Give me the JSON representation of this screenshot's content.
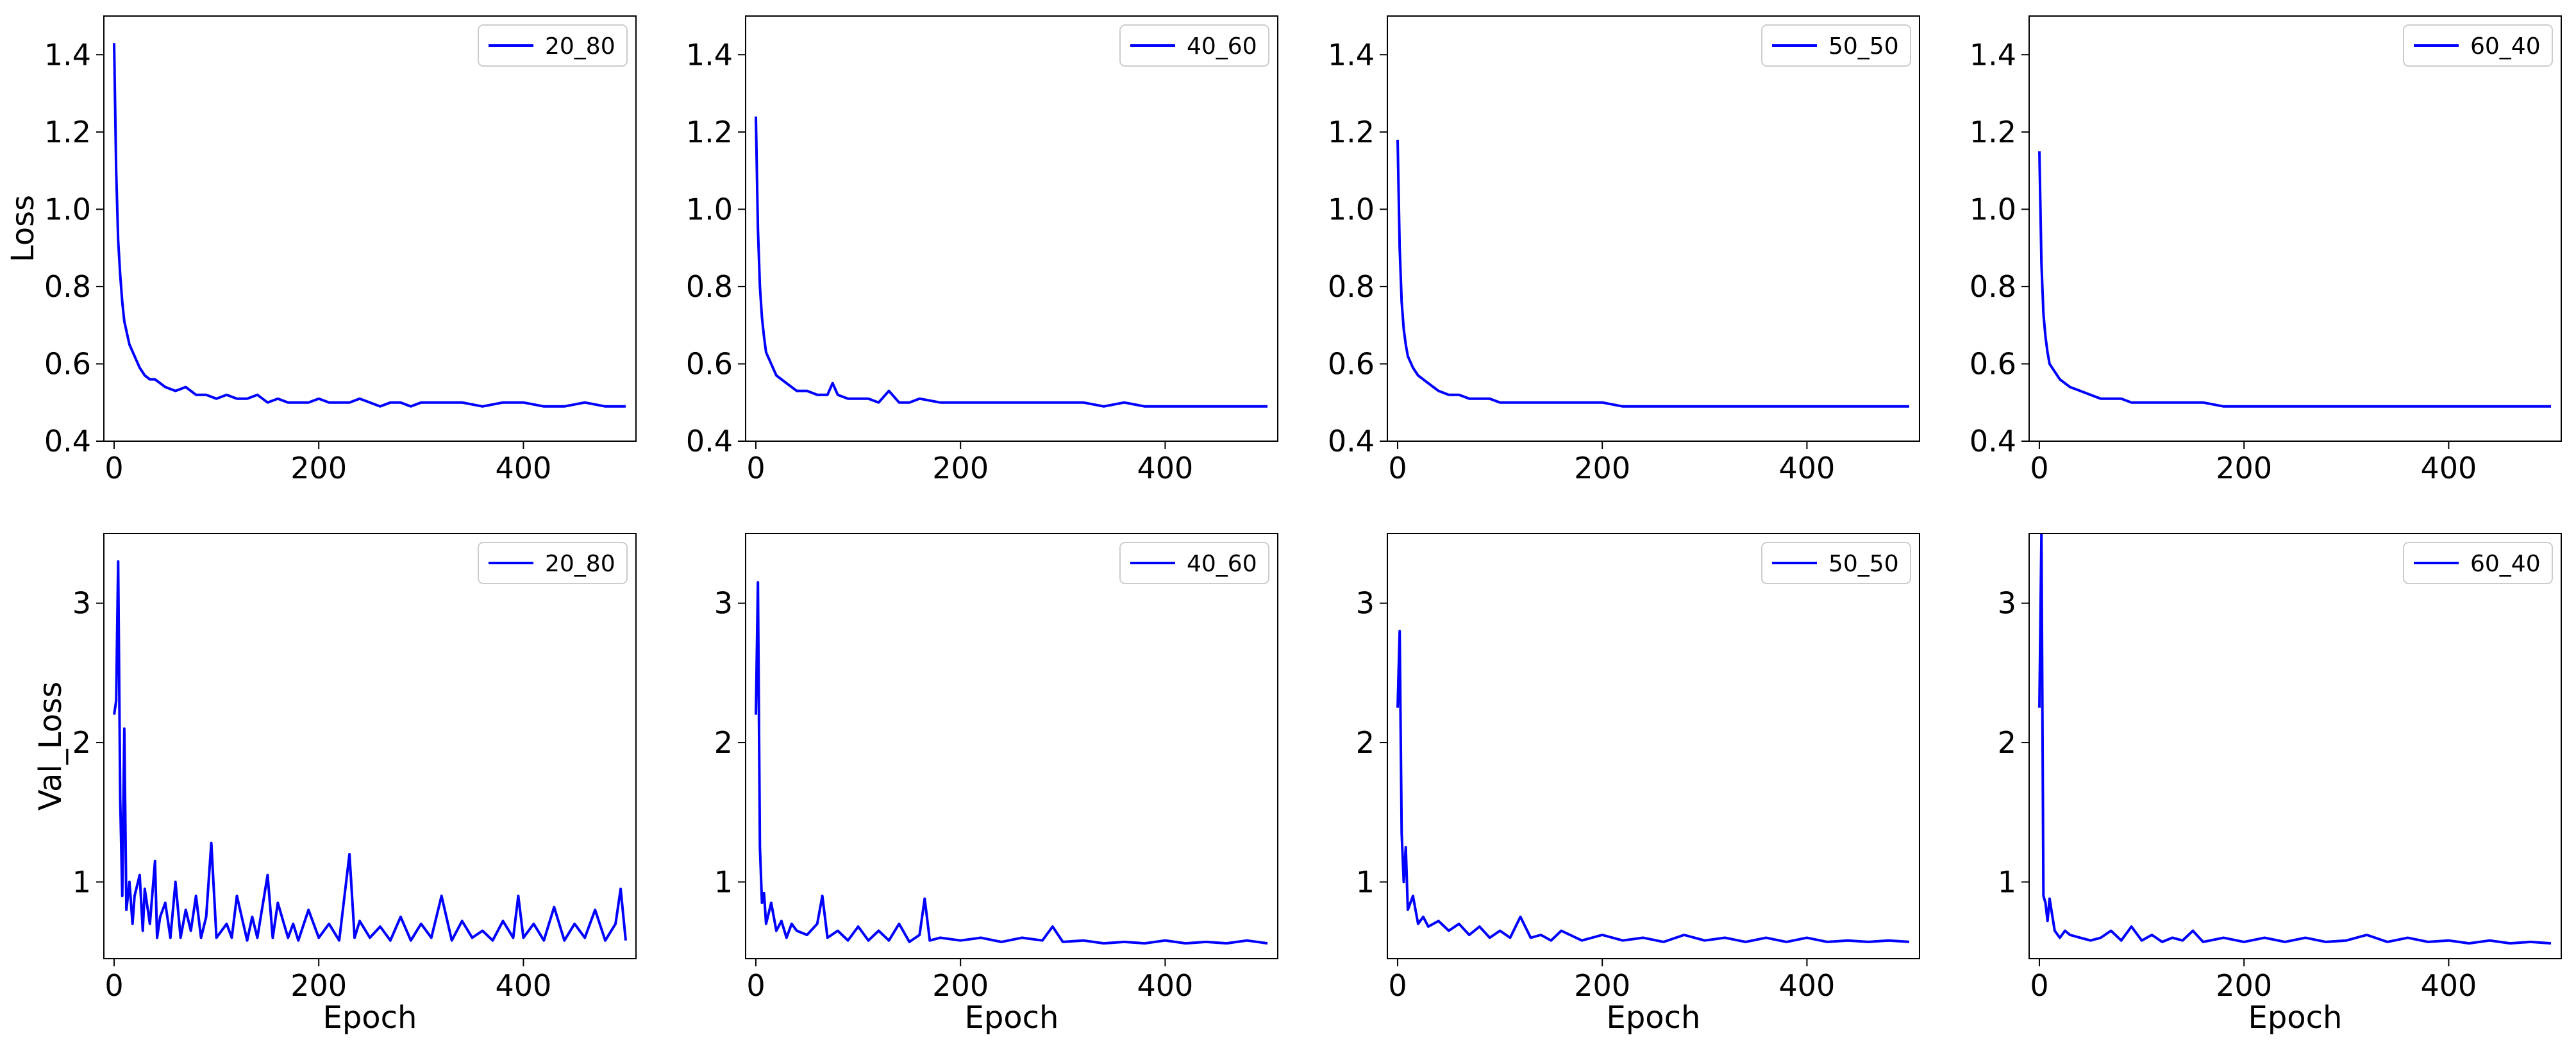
{
  "figure": {
    "rows": 2,
    "cols": 4
  },
  "chart_data": [
    {
      "type": "line",
      "row": 0,
      "col": 0,
      "xlim": [
        -10,
        510
      ],
      "ylim": [
        0.4,
        1.5
      ],
      "xticks": [
        0,
        200,
        400
      ],
      "xtick_labels": [
        "0",
        "200",
        "400"
      ],
      "yticks": [
        0.4,
        0.6,
        0.8,
        1.0,
        1.2,
        1.4
      ],
      "ytick_labels": [
        "0.4",
        "0.6",
        "0.8",
        "1.0",
        "1.2",
        "1.4"
      ],
      "xlabel": "",
      "ylabel": "Loss",
      "legend": "20_80",
      "color": "#0000ff",
      "x": [
        0,
        2,
        4,
        6,
        8,
        10,
        15,
        20,
        25,
        30,
        35,
        40,
        50,
        60,
        70,
        80,
        90,
        100,
        110,
        120,
        130,
        140,
        150,
        160,
        170,
        180,
        190,
        200,
        210,
        220,
        230,
        240,
        250,
        260,
        270,
        280,
        290,
        300,
        320,
        340,
        360,
        380,
        400,
        420,
        440,
        460,
        480,
        500
      ],
      "y": [
        1.43,
        1.1,
        0.92,
        0.83,
        0.76,
        0.71,
        0.65,
        0.62,
        0.59,
        0.57,
        0.56,
        0.56,
        0.54,
        0.53,
        0.54,
        0.52,
        0.52,
        0.51,
        0.52,
        0.51,
        0.51,
        0.52,
        0.5,
        0.51,
        0.5,
        0.5,
        0.5,
        0.51,
        0.5,
        0.5,
        0.5,
        0.51,
        0.5,
        0.49,
        0.5,
        0.5,
        0.49,
        0.5,
        0.5,
        0.5,
        0.49,
        0.5,
        0.5,
        0.49,
        0.49,
        0.5,
        0.49,
        0.49
      ]
    },
    {
      "type": "line",
      "row": 0,
      "col": 1,
      "xlim": [
        -10,
        510
      ],
      "ylim": [
        0.4,
        1.5
      ],
      "xticks": [
        0,
        200,
        400
      ],
      "xtick_labels": [
        "0",
        "200",
        "400"
      ],
      "yticks": [
        0.4,
        0.6,
        0.8,
        1.0,
        1.2,
        1.4
      ],
      "ytick_labels": [
        "0.4",
        "0.6",
        "0.8",
        "1.0",
        "1.2",
        "1.4"
      ],
      "xlabel": "",
      "ylabel": "",
      "legend": "40_60",
      "color": "#0000ff",
      "x": [
        0,
        2,
        4,
        6,
        8,
        10,
        15,
        20,
        25,
        30,
        40,
        50,
        60,
        70,
        75,
        80,
        90,
        100,
        110,
        120,
        130,
        140,
        150,
        160,
        180,
        200,
        220,
        240,
        260,
        280,
        300,
        320,
        340,
        360,
        380,
        400,
        420,
        440,
        460,
        480,
        500
      ],
      "y": [
        1.24,
        0.95,
        0.8,
        0.72,
        0.67,
        0.63,
        0.6,
        0.57,
        0.56,
        0.55,
        0.53,
        0.53,
        0.52,
        0.52,
        0.55,
        0.52,
        0.51,
        0.51,
        0.51,
        0.5,
        0.53,
        0.5,
        0.5,
        0.51,
        0.5,
        0.5,
        0.5,
        0.5,
        0.5,
        0.5,
        0.5,
        0.5,
        0.49,
        0.5,
        0.49,
        0.49,
        0.49,
        0.49,
        0.49,
        0.49,
        0.49
      ]
    },
    {
      "type": "line",
      "row": 0,
      "col": 2,
      "xlim": [
        -10,
        510
      ],
      "ylim": [
        0.4,
        1.5
      ],
      "xticks": [
        0,
        200,
        400
      ],
      "xtick_labels": [
        "0",
        "200",
        "400"
      ],
      "yticks": [
        0.4,
        0.6,
        0.8,
        1.0,
        1.2,
        1.4
      ],
      "ytick_labels": [
        "0.4",
        "0.6",
        "0.8",
        "1.0",
        "1.2",
        "1.4"
      ],
      "xlabel": "",
      "ylabel": "",
      "legend": "50_50",
      "color": "#0000ff",
      "x": [
        0,
        2,
        4,
        6,
        8,
        10,
        15,
        20,
        25,
        30,
        40,
        50,
        60,
        70,
        80,
        90,
        100,
        120,
        140,
        160,
        180,
        200,
        220,
        240,
        260,
        280,
        300,
        320,
        340,
        360,
        380,
        400,
        420,
        440,
        460,
        480,
        500
      ],
      "y": [
        1.18,
        0.9,
        0.76,
        0.69,
        0.65,
        0.62,
        0.59,
        0.57,
        0.56,
        0.55,
        0.53,
        0.52,
        0.52,
        0.51,
        0.51,
        0.51,
        0.5,
        0.5,
        0.5,
        0.5,
        0.5,
        0.5,
        0.49,
        0.49,
        0.49,
        0.49,
        0.49,
        0.49,
        0.49,
        0.49,
        0.49,
        0.49,
        0.49,
        0.49,
        0.49,
        0.49,
        0.49
      ]
    },
    {
      "type": "line",
      "row": 0,
      "col": 3,
      "xlim": [
        -10,
        510
      ],
      "ylim": [
        0.4,
        1.5
      ],
      "xticks": [
        0,
        200,
        400
      ],
      "xtick_labels": [
        "0",
        "200",
        "400"
      ],
      "yticks": [
        0.4,
        0.6,
        0.8,
        1.0,
        1.2,
        1.4
      ],
      "ytick_labels": [
        "0.4",
        "0.6",
        "0.8",
        "1.0",
        "1.2",
        "1.4"
      ],
      "xlabel": "",
      "ylabel": "",
      "legend": "60_40",
      "color": "#0000ff",
      "x": [
        0,
        2,
        4,
        6,
        8,
        10,
        15,
        20,
        25,
        30,
        40,
        50,
        60,
        70,
        80,
        90,
        100,
        120,
        140,
        160,
        180,
        200,
        220,
        240,
        260,
        280,
        300,
        320,
        340,
        360,
        380,
        400,
        420,
        440,
        460,
        480,
        500
      ],
      "y": [
        1.15,
        0.86,
        0.73,
        0.67,
        0.63,
        0.6,
        0.58,
        0.56,
        0.55,
        0.54,
        0.53,
        0.52,
        0.51,
        0.51,
        0.51,
        0.5,
        0.5,
        0.5,
        0.5,
        0.5,
        0.49,
        0.49,
        0.49,
        0.49,
        0.49,
        0.49,
        0.49,
        0.49,
        0.49,
        0.49,
        0.49,
        0.49,
        0.49,
        0.49,
        0.49,
        0.49,
        0.49
      ]
    },
    {
      "type": "line",
      "row": 1,
      "col": 0,
      "xlim": [
        -10,
        510
      ],
      "ylim": [
        0.45,
        3.5
      ],
      "xticks": [
        0,
        200,
        400
      ],
      "xtick_labels": [
        "0",
        "200",
        "400"
      ],
      "yticks": [
        1,
        2,
        3
      ],
      "ytick_labels": [
        "1",
        "2",
        "3"
      ],
      "xlabel": "Epoch",
      "ylabel": "Val_Loss",
      "legend": "20_80",
      "color": "#0000ff",
      "x": [
        0,
        2,
        4,
        6,
        8,
        10,
        12,
        15,
        18,
        20,
        25,
        28,
        30,
        35,
        40,
        42,
        45,
        50,
        55,
        60,
        65,
        70,
        75,
        80,
        85,
        90,
        95,
        100,
        110,
        115,
        120,
        130,
        135,
        140,
        150,
        155,
        160,
        170,
        175,
        180,
        190,
        200,
        210,
        220,
        230,
        235,
        240,
        250,
        260,
        270,
        280,
        290,
        300,
        310,
        320,
        330,
        340,
        350,
        360,
        370,
        380,
        390,
        395,
        400,
        410,
        420,
        430,
        440,
        450,
        460,
        470,
        480,
        490,
        495,
        500
      ],
      "y": [
        2.2,
        2.3,
        3.3,
        1.6,
        0.9,
        2.1,
        0.8,
        1.0,
        0.7,
        0.9,
        1.05,
        0.65,
        0.95,
        0.7,
        1.15,
        0.6,
        0.75,
        0.85,
        0.6,
        1.0,
        0.6,
        0.8,
        0.65,
        0.9,
        0.6,
        0.75,
        1.28,
        0.6,
        0.7,
        0.6,
        0.9,
        0.58,
        0.75,
        0.6,
        1.05,
        0.6,
        0.85,
        0.6,
        0.7,
        0.58,
        0.8,
        0.6,
        0.7,
        0.58,
        1.2,
        0.6,
        0.72,
        0.6,
        0.68,
        0.58,
        0.75,
        0.58,
        0.7,
        0.6,
        0.9,
        0.58,
        0.72,
        0.6,
        0.65,
        0.58,
        0.72,
        0.6,
        0.9,
        0.6,
        0.7,
        0.58,
        0.82,
        0.58,
        0.7,
        0.6,
        0.8,
        0.58,
        0.7,
        0.95,
        0.58
      ]
    },
    {
      "type": "line",
      "row": 1,
      "col": 1,
      "xlim": [
        -10,
        510
      ],
      "ylim": [
        0.45,
        3.5
      ],
      "xticks": [
        0,
        200,
        400
      ],
      "xtick_labels": [
        "0",
        "200",
        "400"
      ],
      "yticks": [
        1,
        2,
        3
      ],
      "ytick_labels": [
        "1",
        "2",
        "3"
      ],
      "xlabel": "Epoch",
      "ylabel": "",
      "legend": "40_60",
      "color": "#0000ff",
      "x": [
        0,
        2,
        4,
        6,
        8,
        10,
        15,
        20,
        25,
        30,
        35,
        40,
        50,
        60,
        65,
        70,
        80,
        90,
        100,
        110,
        120,
        130,
        140,
        150,
        160,
        165,
        170,
        180,
        200,
        220,
        240,
        260,
        280,
        290,
        300,
        320,
        340,
        360,
        380,
        400,
        420,
        440,
        460,
        480,
        500
      ],
      "y": [
        2.2,
        3.15,
        1.25,
        0.85,
        0.92,
        0.7,
        0.85,
        0.65,
        0.72,
        0.6,
        0.7,
        0.65,
        0.62,
        0.7,
        0.9,
        0.6,
        0.65,
        0.58,
        0.68,
        0.58,
        0.65,
        0.58,
        0.7,
        0.57,
        0.62,
        0.88,
        0.58,
        0.6,
        0.58,
        0.6,
        0.57,
        0.6,
        0.58,
        0.68,
        0.57,
        0.58,
        0.56,
        0.57,
        0.56,
        0.58,
        0.56,
        0.57,
        0.56,
        0.58,
        0.56
      ]
    },
    {
      "type": "line",
      "row": 1,
      "col": 2,
      "xlim": [
        -10,
        510
      ],
      "ylim": [
        0.45,
        3.5
      ],
      "xticks": [
        0,
        200,
        400
      ],
      "xtick_labels": [
        "0",
        "200",
        "400"
      ],
      "yticks": [
        1,
        2,
        3
      ],
      "ytick_labels": [
        "1",
        "2",
        "3"
      ],
      "xlabel": "Epoch",
      "ylabel": "",
      "legend": "50_50",
      "color": "#0000ff",
      "x": [
        0,
        2,
        4,
        6,
        8,
        10,
        15,
        20,
        25,
        30,
        40,
        50,
        60,
        70,
        80,
        90,
        100,
        110,
        120,
        130,
        140,
        150,
        160,
        180,
        200,
        220,
        240,
        260,
        280,
        300,
        320,
        340,
        360,
        380,
        400,
        420,
        440,
        460,
        480,
        500
      ],
      "y": [
        2.25,
        2.8,
        1.35,
        1.0,
        1.25,
        0.8,
        0.9,
        0.7,
        0.75,
        0.68,
        0.72,
        0.65,
        0.7,
        0.62,
        0.68,
        0.6,
        0.65,
        0.6,
        0.75,
        0.6,
        0.62,
        0.58,
        0.65,
        0.58,
        0.62,
        0.58,
        0.6,
        0.57,
        0.62,
        0.58,
        0.6,
        0.57,
        0.6,
        0.57,
        0.6,
        0.57,
        0.58,
        0.57,
        0.58,
        0.57
      ]
    },
    {
      "type": "line",
      "row": 1,
      "col": 3,
      "xlim": [
        -10,
        510
      ],
      "ylim": [
        0.45,
        3.5
      ],
      "xticks": [
        0,
        200,
        400
      ],
      "xtick_labels": [
        "0",
        "200",
        "400"
      ],
      "yticks": [
        1,
        2,
        3
      ],
      "ytick_labels": [
        "1",
        "2",
        "3"
      ],
      "xlabel": "Epoch",
      "ylabel": "",
      "legend": "60_40",
      "color": "#0000ff",
      "x": [
        0,
        2,
        4,
        6,
        8,
        10,
        15,
        20,
        25,
        30,
        40,
        50,
        60,
        70,
        80,
        90,
        100,
        110,
        120,
        130,
        140,
        150,
        160,
        180,
        200,
        220,
        240,
        260,
        280,
        300,
        320,
        340,
        360,
        380,
        400,
        420,
        440,
        460,
        480,
        500
      ],
      "y": [
        2.25,
        3.5,
        0.9,
        0.85,
        0.72,
        0.88,
        0.65,
        0.6,
        0.65,
        0.62,
        0.6,
        0.58,
        0.6,
        0.65,
        0.58,
        0.68,
        0.58,
        0.62,
        0.57,
        0.6,
        0.58,
        0.65,
        0.57,
        0.6,
        0.57,
        0.6,
        0.57,
        0.6,
        0.57,
        0.58,
        0.62,
        0.57,
        0.6,
        0.57,
        0.58,
        0.56,
        0.58,
        0.56,
        0.57,
        0.56
      ]
    }
  ]
}
